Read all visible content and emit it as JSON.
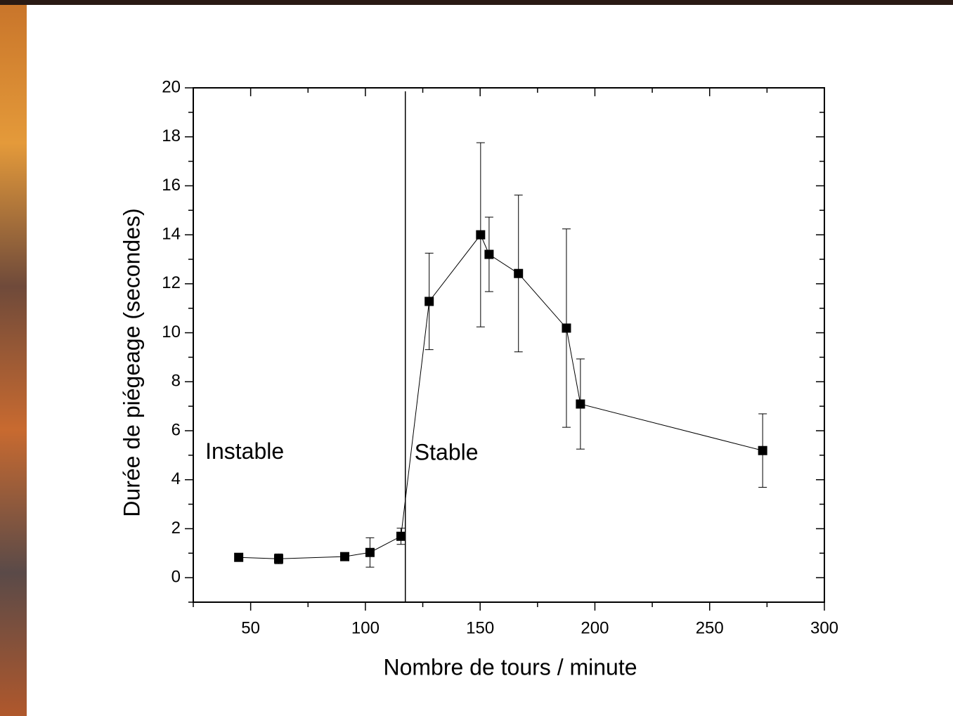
{
  "chart_data": {
    "type": "line",
    "x_label": "Nombre de tours / minute",
    "y_label": "Durée de piégeage (secondes)",
    "x": [
      44.8,
      62.2,
      91,
      102,
      115.5,
      127.8,
      150.2,
      153.9,
      166.7,
      187.6,
      193.7,
      273.1
    ],
    "series": [
      {
        "color": "#000000",
        "values": [
          0.83,
          0.77,
          0.86,
          1.03,
          1.69,
          11.28,
          14.0,
          13.2,
          12.42,
          10.19,
          7.09,
          5.19
        ],
        "errors": [
          0.1,
          0.2,
          0.05,
          0.6,
          0.33,
          1.97,
          3.76,
          1.52,
          3.2,
          4.05,
          1.84,
          1.5
        ]
      }
    ],
    "xlim": [
      25,
      300
    ],
    "ylim": [
      -1,
      20
    ],
    "xticks": [
      50,
      100,
      150,
      200,
      250,
      300
    ],
    "yticks": [
      0,
      2,
      4,
      6,
      8,
      10,
      12,
      14,
      16,
      18,
      20
    ],
    "xminorticks": [
      25,
      75,
      125,
      175,
      225,
      275
    ],
    "yminorticks": [
      -1,
      1,
      3,
      5,
      7,
      9,
      11,
      13,
      15,
      17,
      19
    ],
    "threshold_x": 117.4,
    "annotations": [
      {
        "text": "Instable",
        "x": 47.4,
        "y": 5.1
      },
      {
        "text": "Stable",
        "x": 135.3,
        "y": 5.05
      }
    ]
  }
}
